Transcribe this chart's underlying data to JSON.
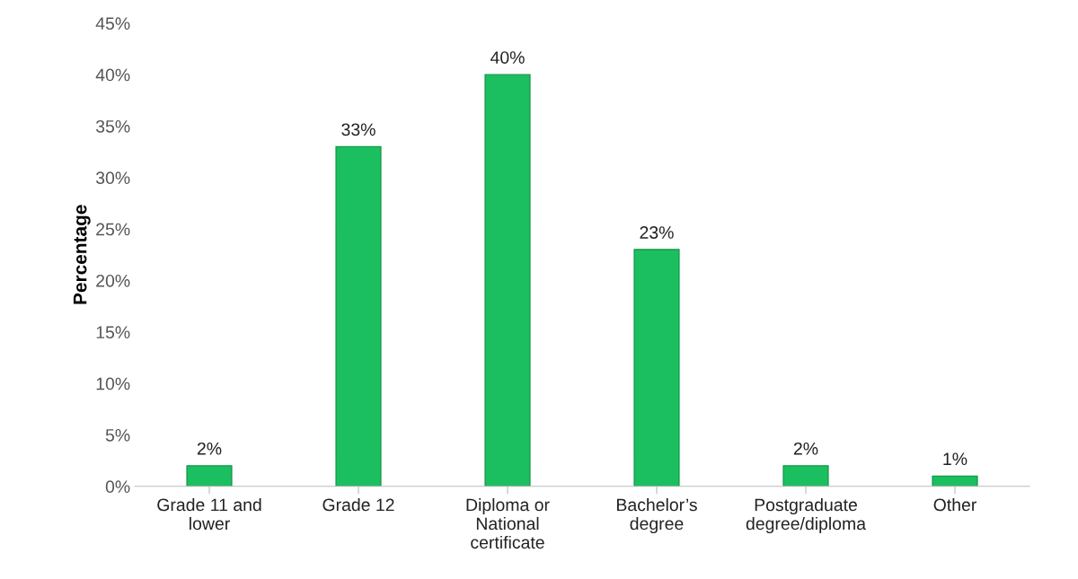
{
  "chart_data": {
    "type": "bar",
    "ylabel": "Percentage",
    "categories": [
      "Grade 11 and\nlower",
      "Grade 12",
      "Diploma or\nNational\ncertificate",
      "Bachelor’s\ndegree",
      "Postgraduate\ndegree/diploma",
      "Other"
    ],
    "values": [
      2,
      33,
      40,
      23,
      2,
      1
    ],
    "value_labels": [
      "2%",
      "33%",
      "40%",
      "23%",
      "2%",
      "1%"
    ],
    "color": "#1cbf5f",
    "ylim": [
      0,
      45
    ],
    "yticks": [
      {
        "value": 0,
        "label": "0%"
      },
      {
        "value": 5,
        "label": "5%"
      },
      {
        "value": 10,
        "label": "10%"
      },
      {
        "value": 15,
        "label": "15%"
      },
      {
        "value": 20,
        "label": "20%"
      },
      {
        "value": 25,
        "label": "25%"
      },
      {
        "value": 30,
        "label": "30%"
      },
      {
        "value": 35,
        "label": "35%"
      },
      {
        "value": 40,
        "label": "40%"
      },
      {
        "value": 45,
        "label": "45%"
      }
    ],
    "grid": false,
    "legend": false
  }
}
